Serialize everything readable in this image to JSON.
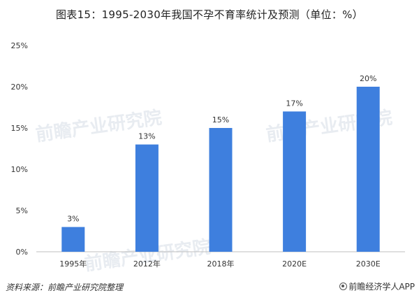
{
  "title": "图表15：1995-2030年我国不孕不育率统计及预测（单位：%）",
  "watermark_text": "前瞻产业研究院",
  "footer": {
    "source": "资料来源：前瞻产业研究院整理",
    "brand": "前瞻经济学人APP"
  },
  "colors": {
    "bar": "#3e7fde",
    "grid": "#d9d9d9",
    "axis": "#bfbfbf"
  },
  "icons": {
    "brand": "front-eye-icon"
  },
  "chart_data": {
    "type": "bar",
    "categories": [
      "1995年",
      "2012年",
      "2018年",
      "2020E",
      "2030E"
    ],
    "values": [
      3,
      13,
      15,
      17,
      20
    ],
    "data_labels": [
      "3%",
      "13%",
      "15%",
      "17%",
      "20%"
    ],
    "yticks": [
      "0%",
      "5%",
      "10%",
      "15%",
      "20%",
      "25%"
    ],
    "ylim": [
      0,
      25
    ],
    "grid": false,
    "legend": "none"
  }
}
